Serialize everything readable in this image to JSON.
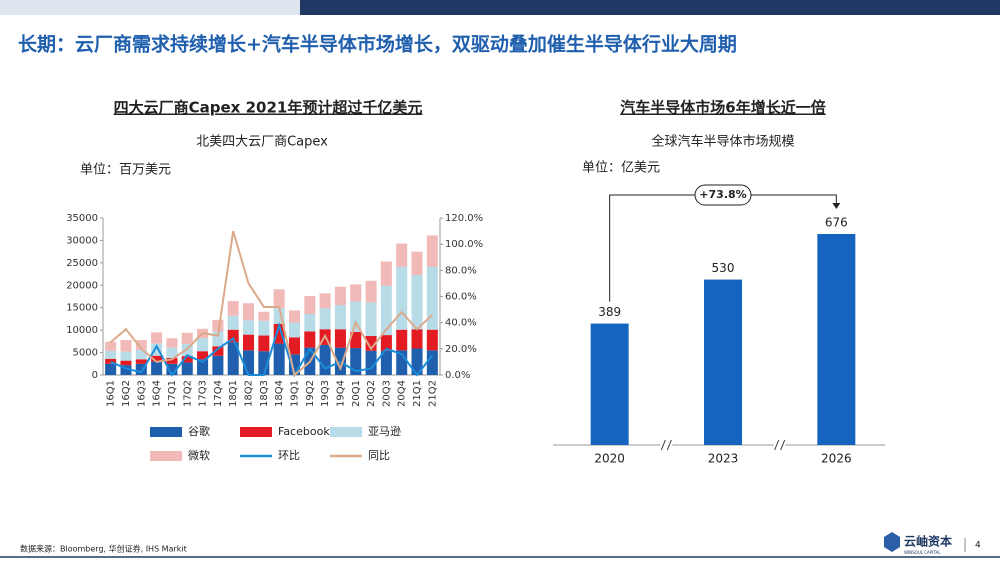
{
  "header": {
    "title": "长期：云厂商需求持续增长+汽车半导体市场增长，双驱动叠加催生半导体行业大周期"
  },
  "chart_data": [
    {
      "type": "bar",
      "stacked": true,
      "title": "四大云厂商Capex 2021年预计超过千亿美元",
      "subtitle": "北美四大云厂商Capex",
      "unit_label": "单位：百万美元",
      "categories": [
        "16Q1",
        "16Q2",
        "16Q3",
        "16Q4",
        "17Q1",
        "17Q2",
        "17Q3",
        "17Q4",
        "18Q1",
        "18Q2",
        "18Q3",
        "18Q4",
        "19Q1",
        "19Q2",
        "19Q3",
        "19Q4",
        "20Q1",
        "20Q2",
        "20Q3",
        "20Q4",
        "21Q1",
        "21Q2"
      ],
      "series": [
        {
          "name": "谷歌",
          "color": "#1f5fae",
          "values": [
            2500,
            2200,
            2500,
            3000,
            2500,
            2800,
            3500,
            4300,
            7300,
            5500,
            5300,
            7000,
            4600,
            6100,
            6700,
            6100,
            6000,
            5400,
            5400,
            5500,
            5900,
            5500
          ]
        },
        {
          "name": "Facebook",
          "color": "#e31b23",
          "values": [
            1100,
            1000,
            1000,
            1300,
            1300,
            1400,
            1800,
            2100,
            2800,
            3500,
            3500,
            4400,
            3800,
            3600,
            3500,
            4100,
            3600,
            3300,
            3500,
            4600,
            4300,
            4600
          ]
        },
        {
          "name": "亚马逊",
          "color": "#b7dce8",
          "values": [
            1800,
            2000,
            2100,
            2700,
            2300,
            2700,
            2900,
            3300,
            3100,
            3200,
            3300,
            3500,
            3300,
            3900,
            4700,
            5400,
            6800,
            7500,
            11000,
            14000,
            12100,
            14000
          ]
        },
        {
          "name": "微软",
          "color": "#f2b9b9",
          "values": [
            2000,
            2600,
            2200,
            2500,
            2100,
            2500,
            2100,
            2600,
            3300,
            3800,
            2000,
            4200,
            2700,
            4000,
            3300,
            4100,
            3800,
            4800,
            5400,
            5200,
            5200,
            7000
          ]
        },
        {
          "name": "环比",
          "type": "line",
          "axis": "y2",
          "color": "#1a8cd8",
          "values": [
            10,
            5,
            2,
            22,
            0,
            15,
            10,
            20,
            28,
            0,
            0,
            38,
            0,
            20,
            5,
            10,
            3,
            5,
            20,
            16,
            0,
            15
          ]
        },
        {
          "name": "同比",
          "type": "line",
          "axis": "y2",
          "color": "#dba98a",
          "values": [
            25,
            35,
            20,
            10,
            12,
            20,
            32,
            30,
            110,
            70,
            52,
            52,
            0,
            10,
            30,
            5,
            40,
            20,
            35,
            48,
            35,
            46
          ]
        }
      ],
      "ylim": [
        0,
        35000
      ],
      "yticks": [
        0,
        5000,
        10000,
        15000,
        20000,
        25000,
        30000,
        35000
      ],
      "y2lim": [
        0,
        120
      ],
      "y2ticks": [
        {
          "value": 0,
          "label": "0.0%"
        },
        {
          "value": 20,
          "label": "20.0%"
        },
        {
          "value": 40,
          "label": "40.0%"
        },
        {
          "value": 60,
          "label": "60.0%"
        },
        {
          "value": 80,
          "label": "80.0%"
        },
        {
          "value": 100,
          "label": "100.0%"
        },
        {
          "value": 120,
          "label": "120.0%"
        }
      ]
    },
    {
      "type": "bar",
      "title": "汽车半导体市场6年增长近一倍",
      "subtitle": "全球汽车半导体市场规模",
      "unit_label": "单位：亿美元",
      "categories": [
        "2020",
        "2023",
        "2026"
      ],
      "values": [
        389,
        530,
        676
      ],
      "color": "#1565c0",
      "annotation": "+73.8%"
    }
  ],
  "footer": {
    "source": "数据来源：Bloomberg, 华创证券, IHS Markit",
    "page": "4",
    "logo": "云岫资本",
    "logo_sub": "WINSOUL CAPITAL"
  }
}
